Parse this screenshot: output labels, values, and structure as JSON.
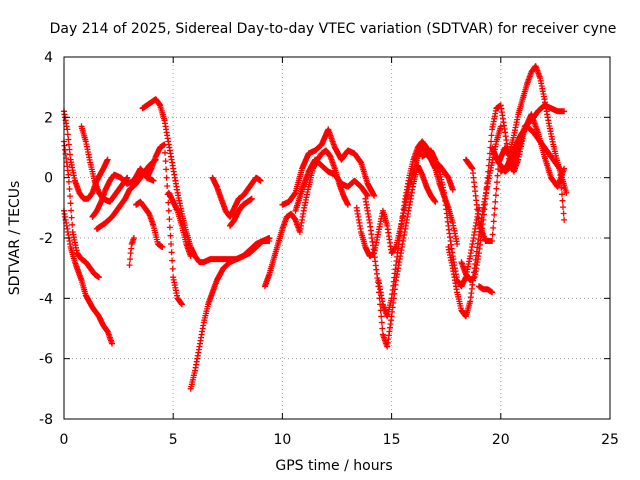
{
  "chart_data": {
    "type": "scatter",
    "title": "Day 214 of 2025, Sidereal Day-to-day VTEC variation (SDTVAR) for receiver cyne",
    "xlabel": "GPS time / hours",
    "ylabel": "SDTVAR / TECUs",
    "xlim": [
      0,
      25
    ],
    "ylim": [
      -8,
      4
    ],
    "x_ticks": [
      0,
      5,
      10,
      15,
      20,
      25
    ],
    "y_ticks": [
      -8,
      -6,
      -4,
      -2,
      0,
      2,
      4
    ],
    "x_tick_labels": [
      "0",
      "5",
      "10",
      "15",
      "20",
      "25"
    ],
    "y_tick_labels": [
      "-8",
      "-6",
      "-4",
      "-2",
      "0",
      "2",
      "4"
    ],
    "grid": true,
    "marker": "+",
    "marker_color": "#ff0000",
    "series": [
      {
        "name": "s1",
        "x": [
          0.0,
          0.2,
          0.4,
          0.6,
          0.8,
          1.0,
          1.2,
          1.4,
          1.6
        ],
        "y": [
          1.2,
          0.1,
          -1.8,
          -2.5,
          -2.7,
          -2.8,
          -3.0,
          -3.2,
          -3.3
        ]
      },
      {
        "name": "s2",
        "x": [
          0.0,
          0.1,
          0.3,
          0.5,
          0.8,
          1.0,
          1.3,
          1.6,
          1.8,
          2.0,
          2.2
        ],
        "y": [
          -1.1,
          -1.5,
          -2.3,
          -2.8,
          -3.4,
          -3.9,
          -4.3,
          -4.6,
          -4.9,
          -5.1,
          -5.5
        ]
      },
      {
        "name": "s3",
        "x": [
          0.0,
          0.15,
          0.3,
          0.5,
          0.7,
          0.9,
          1.1,
          1.3,
          1.5,
          1.8,
          2.0
        ],
        "y": [
          2.2,
          1.6,
          0.6,
          -0.1,
          -0.5,
          -0.7,
          -0.7,
          -0.5,
          -0.1,
          0.3,
          0.6
        ]
      },
      {
        "name": "s4",
        "x": [
          0.8,
          1.0,
          1.2,
          1.4,
          1.6,
          1.8,
          2.1,
          2.4,
          2.7,
          2.9
        ],
        "y": [
          1.7,
          1.2,
          0.5,
          -0.1,
          -0.5,
          -0.7,
          -0.8,
          -0.5,
          -0.2,
          0.0
        ]
      },
      {
        "name": "s5",
        "x": [
          1.3,
          1.5,
          1.7,
          1.9,
          2.1,
          2.3,
          2.6,
          2.9,
          3.2,
          3.5,
          3.8,
          4.1
        ],
        "y": [
          -1.3,
          -1.1,
          -0.8,
          -0.4,
          -0.1,
          0.1,
          0.0,
          -0.2,
          -0.1,
          0.3,
          0.0,
          -0.1
        ]
      },
      {
        "name": "s6",
        "x": [
          1.5,
          1.7,
          1.9,
          2.2,
          2.5,
          2.8,
          3.0,
          3.3,
          3.6,
          3.9,
          4.2
        ],
        "y": [
          -1.7,
          -1.6,
          -1.5,
          -1.3,
          -1.0,
          -0.7,
          -0.4,
          -0.2,
          0.1,
          0.4,
          0.6
        ]
      },
      {
        "name": "s7",
        "x": [
          3.0,
          3.05,
          3.1,
          3.2
        ],
        "y": [
          -2.9,
          -2.5,
          -2.2,
          -2.0
        ]
      },
      {
        "name": "s8",
        "x": [
          3.3,
          3.5,
          3.7,
          3.9,
          4.1,
          4.3,
          4.5
        ],
        "y": [
          -0.9,
          -0.8,
          -1.0,
          -1.2,
          -1.6,
          -2.2,
          -2.3
        ]
      },
      {
        "name": "s9",
        "x": [
          3.6,
          3.8,
          4.0,
          4.2,
          4.4,
          4.6,
          4.8,
          5.0,
          5.2,
          5.4,
          5.6,
          5.8,
          6.0,
          6.2,
          6.4,
          6.7,
          7.0,
          7.3,
          7.6,
          7.9,
          8.2,
          8.5,
          8.8,
          9.1,
          9.4
        ],
        "y": [
          2.3,
          2.4,
          2.5,
          2.6,
          2.4,
          1.9,
          1.1,
          0.3,
          -0.5,
          -1.2,
          -1.8,
          -2.3,
          -2.6,
          -2.8,
          -2.8,
          -2.7,
          -2.7,
          -2.7,
          -2.7,
          -2.7,
          -2.6,
          -2.4,
          -2.2,
          -2.1,
          -2.1
        ]
      },
      {
        "name": "s10",
        "x": [
          3.8,
          4.0,
          4.2,
          4.4,
          4.6,
          4.8,
          5.0,
          5.2,
          5.4
        ],
        "y": [
          0.0,
          0.3,
          0.7,
          1.0,
          1.1,
          -1.1,
          -3.3,
          -4.0,
          -4.2
        ]
      },
      {
        "name": "s11",
        "x": [
          4.8,
          5.0,
          5.2,
          5.4,
          5.6,
          5.8
        ],
        "y": [
          -0.5,
          -0.8,
          -1.1,
          -1.6,
          -2.2,
          -2.6
        ]
      },
      {
        "name": "s12",
        "x": [
          5.8,
          6.0,
          6.2,
          6.4,
          6.6,
          6.8,
          7.0,
          7.3,
          7.6,
          7.9,
          8.2,
          8.5,
          8.8,
          9.1,
          9.4
        ],
        "y": [
          -7.0,
          -6.4,
          -5.6,
          -4.8,
          -4.2,
          -3.8,
          -3.4,
          -3.0,
          -2.8,
          -2.7,
          -2.6,
          -2.5,
          -2.3,
          -2.1,
          -2.0
        ]
      },
      {
        "name": "s13",
        "x": [
          6.8,
          7.0,
          7.2,
          7.4,
          7.6,
          7.8,
          8.0,
          8.2,
          8.4,
          8.6,
          8.8,
          9.0
        ],
        "y": [
          0.0,
          -0.3,
          -0.7,
          -1.1,
          -1.3,
          -1.0,
          -0.7,
          -0.6,
          -0.4,
          -0.2,
          0.0,
          -0.1
        ]
      },
      {
        "name": "s14",
        "x": [
          7.6,
          7.8,
          8.0,
          8.2,
          8.4,
          8.6
        ],
        "y": [
          -1.6,
          -1.4,
          -1.1,
          -0.9,
          -0.8,
          -0.7
        ]
      },
      {
        "name": "s15",
        "x": [
          9.2,
          9.4,
          9.6,
          9.8,
          10.0,
          10.2,
          10.4,
          10.6,
          10.8,
          11.0,
          11.2,
          11.4,
          11.6,
          11.8,
          12.0,
          12.2,
          12.4,
          12.6,
          12.8,
          13.0
        ],
        "y": [
          -3.6,
          -3.2,
          -2.7,
          -2.2,
          -1.7,
          -1.3,
          -1.2,
          -1.4,
          -1.8,
          -1.0,
          -0.3,
          0.3,
          0.6,
          0.8,
          0.9,
          0.7,
          0.3,
          -0.2,
          -0.6,
          -0.9
        ]
      },
      {
        "name": "s16",
        "x": [
          10.0,
          10.3,
          10.6,
          10.9,
          11.2,
          11.5,
          11.8,
          12.1,
          12.4,
          12.7,
          13.0,
          13.3,
          13.6,
          13.9,
          14.2
        ],
        "y": [
          -0.9,
          -0.8,
          -0.5,
          0.3,
          0.8,
          0.9,
          1.1,
          1.6,
          1.0,
          0.6,
          0.9,
          0.8,
          0.5,
          -0.2,
          -0.6
        ]
      },
      {
        "name": "s17",
        "x": [
          10.6,
          10.9,
          11.2,
          11.5,
          11.8,
          12.1,
          12.4,
          12.7,
          13.0,
          13.3,
          13.6,
          13.9
        ],
        "y": [
          -1.1,
          -0.4,
          0.2,
          0.6,
          0.4,
          0.2,
          0.1,
          -0.2,
          -0.3,
          -0.1,
          -0.3,
          -0.6
        ]
      },
      {
        "name": "s18",
        "x": [
          13.4,
          13.6,
          13.8,
          14.0,
          14.2,
          14.4,
          14.6,
          14.8,
          15.0,
          15.2,
          15.4,
          15.6,
          15.8,
          16.0,
          16.2,
          16.4,
          16.6,
          16.8,
          17.0,
          17.2,
          17.4,
          17.6,
          17.8,
          18.0
        ],
        "y": [
          -1.0,
          -1.8,
          -2.3,
          -2.6,
          -2.5,
          -1.8,
          -1.1,
          -1.6,
          -2.5,
          -2.3,
          -1.7,
          -1.0,
          -0.3,
          0.2,
          0.7,
          1.0,
          0.8,
          0.6,
          0.3,
          -0.2,
          -0.6,
          -1.0,
          -1.5,
          -2.2
        ]
      },
      {
        "name": "s19",
        "x": [
          13.8,
          14.0,
          14.2,
          14.4,
          14.6,
          14.8,
          15.0,
          15.2,
          15.4,
          15.6,
          15.8,
          16.0,
          16.2,
          16.4,
          16.6,
          16.8,
          17.0
        ],
        "y": [
          -0.7,
          -1.5,
          -2.5,
          -3.6,
          -5.2,
          -5.6,
          -4.6,
          -3.4,
          -2.6,
          -1.8,
          -1.0,
          -0.2,
          0.4,
          0.1,
          -0.3,
          -0.6,
          -0.8
        ]
      },
      {
        "name": "s20",
        "x": [
          14.4,
          14.6,
          14.8,
          15.0,
          15.2,
          15.4,
          15.6,
          15.8,
          16.0,
          16.2,
          16.4,
          16.6,
          16.8,
          17.0,
          17.2,
          17.4,
          17.6,
          17.8
        ],
        "y": [
          -3.4,
          -4.2,
          -4.6,
          -4.0,
          -2.9,
          -1.8,
          -0.8,
          0.0,
          0.6,
          1.0,
          1.2,
          1.0,
          0.7,
          0.5,
          0.4,
          0.2,
          0.0,
          -0.4
        ]
      },
      {
        "name": "s21",
        "x": [
          16.4,
          16.6,
          16.8,
          17.0,
          17.2,
          17.4,
          17.6,
          17.8,
          18.0,
          18.2,
          18.4,
          18.6,
          18.8,
          19.0
        ],
        "y": [
          0.7,
          0.8,
          0.9,
          0.6,
          0.2,
          -0.5,
          -1.6,
          -2.6,
          -3.4,
          -3.6,
          -3.3,
          -2.6,
          -1.8,
          -1.0
        ]
      },
      {
        "name": "s22",
        "x": [
          17.6,
          17.8,
          18.0,
          18.2,
          18.4,
          18.6,
          18.8,
          19.0,
          19.2,
          19.4,
          19.6,
          19.8,
          20.0
        ],
        "y": [
          -2.3,
          -3.0,
          -3.8,
          -4.4,
          -4.6,
          -4.1,
          -3.0,
          -1.9,
          -1.0,
          -0.2,
          0.5,
          1.2,
          1.7
        ]
      },
      {
        "name": "s23",
        "x": [
          18.2,
          18.4,
          18.6,
          18.8,
          19.0,
          19.2,
          19.4,
          19.6,
          19.8,
          20.0,
          20.2,
          20.4,
          20.6,
          20.8,
          21.0
        ],
        "y": [
          -2.8,
          -3.2,
          -3.4,
          -3.3,
          -2.5,
          -1.4,
          0.0,
          1.6,
          2.3,
          2.4,
          1.5,
          0.5,
          0.2,
          0.6,
          1.3
        ]
      },
      {
        "name": "s24",
        "x": [
          18.4,
          18.7,
          19.0,
          19.3,
          19.6,
          19.9,
          20.2,
          20.5,
          20.8,
          21.1,
          21.4,
          21.7,
          22.0,
          22.3,
          22.6,
          22.9
        ],
        "y": [
          0.6,
          0.3,
          -1.5,
          -2.1,
          -2.1,
          0.5,
          1.0,
          0.6,
          1.0,
          1.7,
          1.9,
          2.2,
          2.4,
          2.3,
          2.2,
          2.2
        ]
      },
      {
        "name": "s25",
        "x": [
          19.0,
          19.2,
          19.4,
          19.6
        ],
        "y": [
          -3.6,
          -3.7,
          -3.7,
          -3.8
        ]
      },
      {
        "name": "s26",
        "x": [
          19.6,
          19.9,
          20.2,
          20.5,
          20.8,
          21.1,
          21.4,
          21.7,
          22.0,
          22.3,
          22.6,
          22.9
        ],
        "y": [
          1.0,
          0.5,
          0.2,
          0.4,
          0.9,
          1.6,
          2.1,
          1.5,
          0.7,
          0.0,
          -0.3,
          0.3
        ]
      },
      {
        "name": "s27",
        "x": [
          20.4,
          20.6,
          20.8,
          21.0,
          21.2,
          21.4,
          21.6,
          21.8,
          22.0,
          22.2,
          22.4,
          22.6,
          22.8,
          23.0
        ],
        "y": [
          0.8,
          1.4,
          2.1,
          2.6,
          3.1,
          3.5,
          3.7,
          3.3,
          2.6,
          1.8,
          1.1,
          0.5,
          0.0,
          -0.5
        ]
      },
      {
        "name": "s28",
        "x": [
          20.0,
          20.3,
          20.6,
          20.9,
          21.2,
          21.5,
          21.8,
          22.1,
          22.4,
          22.7,
          22.9
        ],
        "y": [
          0.2,
          0.4,
          0.9,
          1.4,
          1.7,
          1.5,
          1.2,
          0.9,
          0.6,
          0.3,
          -1.4
        ]
      }
    ]
  }
}
